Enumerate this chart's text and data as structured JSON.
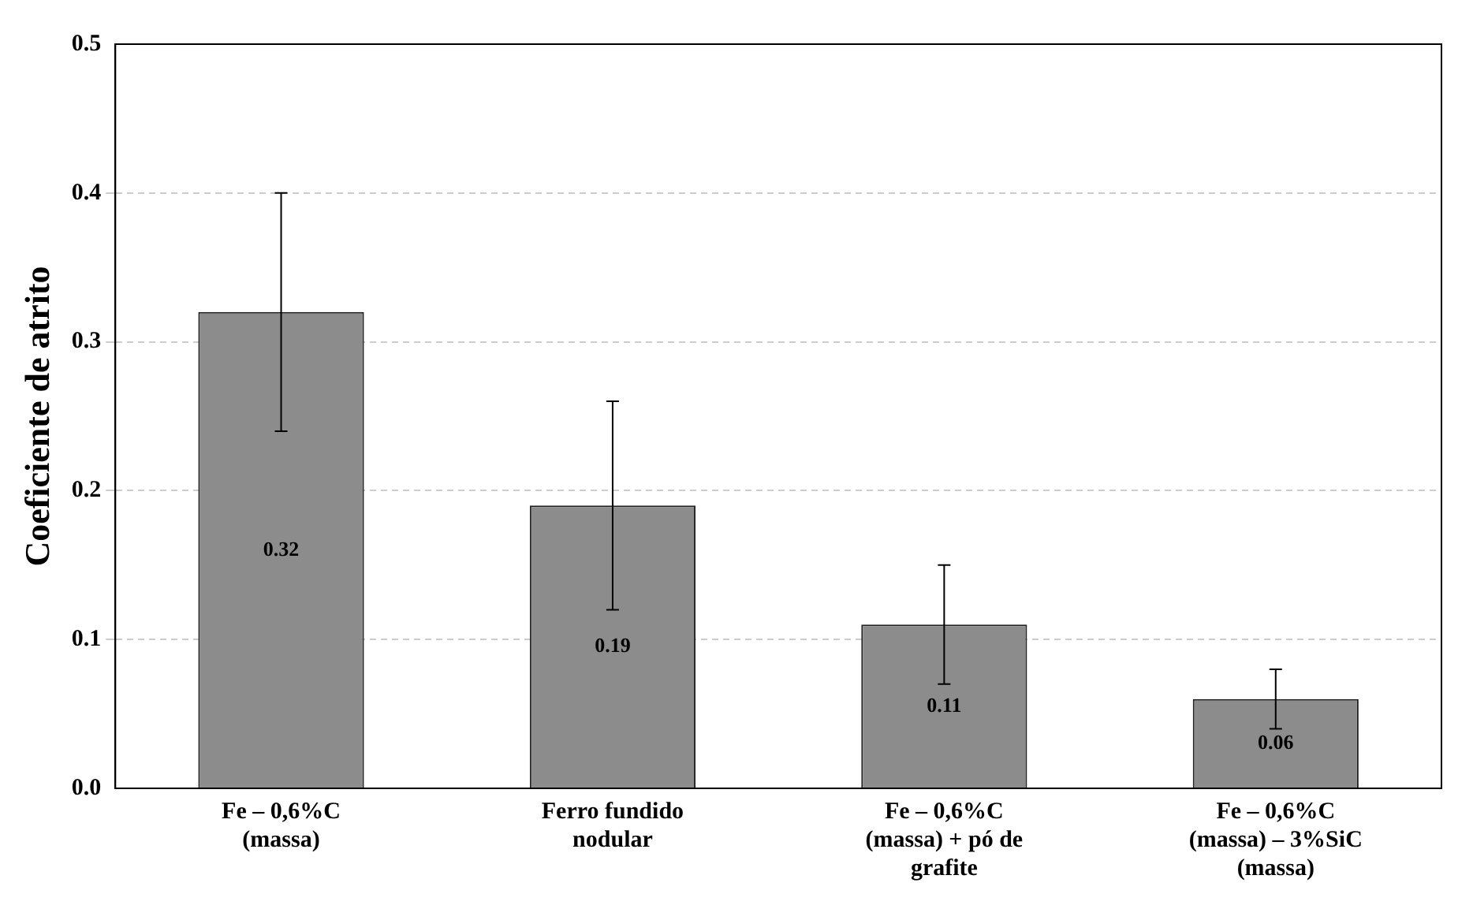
{
  "chart_data": {
    "type": "bar",
    "ylabel": "Coeficiente de atrito",
    "categories": [
      "Fe – 0,6%C (massa)",
      "Ferro fundido nodular",
      "Fe – 0,6%C (massa) + pó de grafite",
      "Fe – 0,6%C (massa) – 3%SiC (massa)"
    ],
    "values": [
      0.32,
      0.19,
      0.11,
      0.06
    ],
    "errors": [
      0.08,
      0.07,
      0.04,
      0.02
    ],
    "color": "#8c8c8c",
    "ylim": [
      0,
      0.5
    ],
    "yticks": [
      {
        "value": 0,
        "label": "0.0"
      },
      0.1,
      0.2,
      0.3,
      0.4,
      0.5
    ],
    "grid": "y",
    "data_labels": true
  }
}
